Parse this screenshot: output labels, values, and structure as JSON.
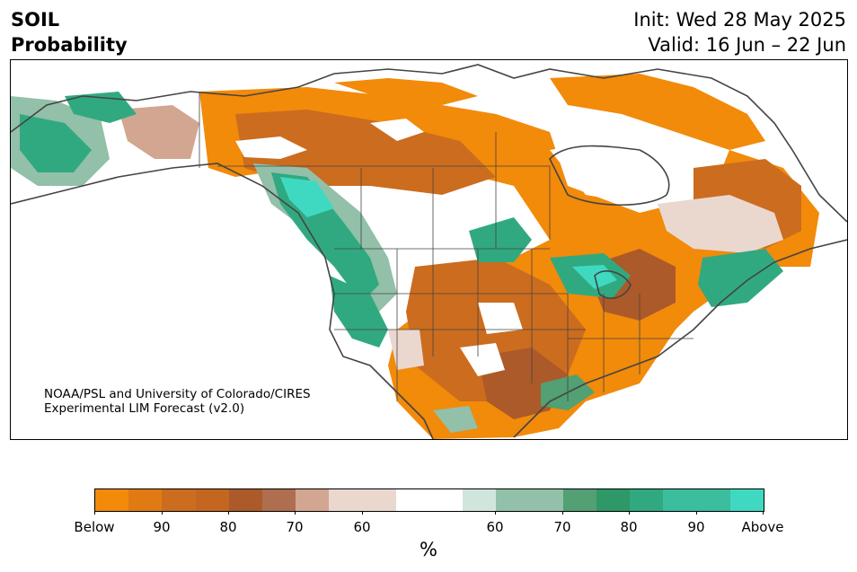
{
  "header": {
    "title_line1": "SOIL",
    "title_line2": "Probability",
    "init": "Init: Wed 28 May 2025",
    "valid": "Valid: 16 Jun – 22 Jun"
  },
  "credit": {
    "line1": "NOAA/PSL and University of Colorado/CIRES",
    "line2": "Experimental LIM Forecast (v2.0)"
  },
  "colorbar": {
    "colors": [
      "#f28a0a",
      "#e07b14",
      "#cc6c1f",
      "#c4661f",
      "#ac5a2a",
      "#b06e50",
      "#d2a690",
      "#ead8cf",
      "#ead8cf",
      "#ffffff",
      "#ffffff",
      "#d0e6dc",
      "#92c0a9",
      "#92c0a9",
      "#52a073",
      "#2f9868",
      "#31a980",
      "#3bbd9e",
      "#3bbd9e",
      "#3fd9c2"
    ],
    "tick_labels": [
      "Below",
      "90",
      "80",
      "70",
      "60",
      "60",
      "70",
      "80",
      "90",
      "Above"
    ],
    "units": "%"
  },
  "legend_colors": {
    "below_strong": "#f28a0a",
    "below_mid": "#c4661f",
    "below_weak": "#d2a690",
    "near_normal": "#ffffff",
    "above_weak": "#92c0a9",
    "above_mid": "#31a980",
    "above_strong": "#3fd9c2",
    "border": "#444444"
  }
}
